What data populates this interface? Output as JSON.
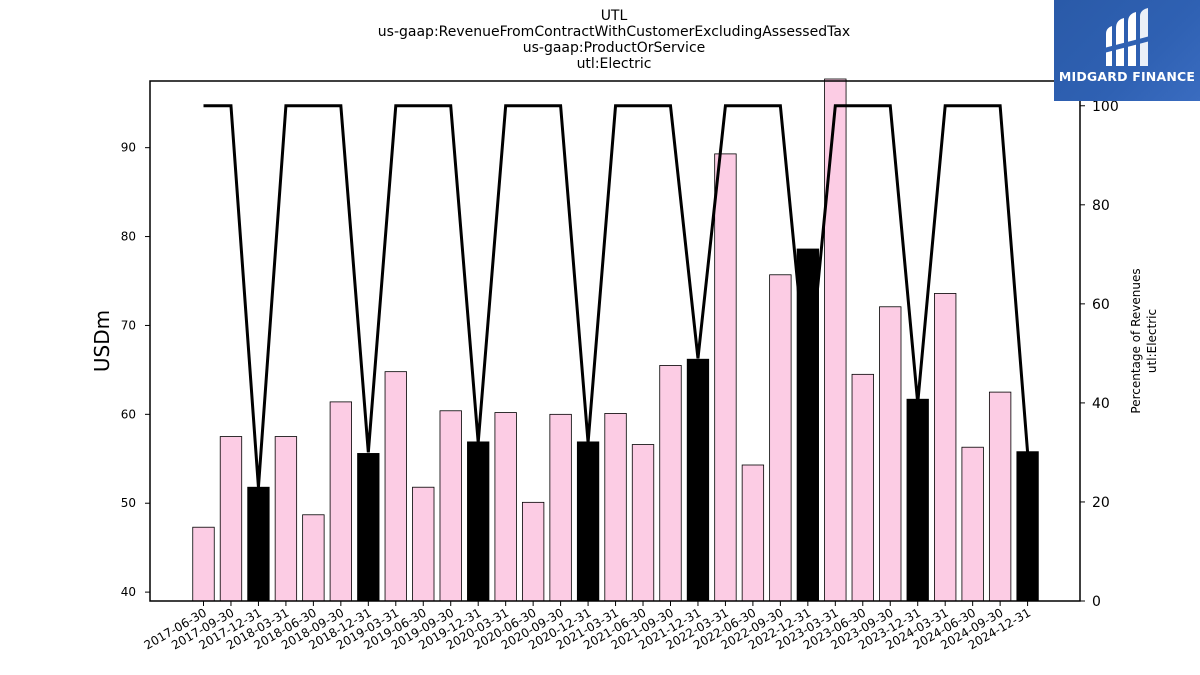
{
  "title_lines": [
    "UTL",
    "us-gaap:RevenueFromContractWithCustomerExcludingAssessedTax",
    "us-gaap:ProductOrService",
    "utl:Electric"
  ],
  "logo": {
    "text": "MIDGARD FINANCE",
    "color": "#2f61b3"
  },
  "colors": {
    "bar_default": "#fccce4",
    "bar_highlight": "#000000",
    "line": "#000000"
  },
  "chart_data": {
    "type": "bar",
    "categories": [
      "2017-06-30",
      "2017-09-30",
      "2017-12-31",
      "2018-03-31",
      "2018-06-30",
      "2018-09-30",
      "2018-12-31",
      "2019-03-31",
      "2019-06-30",
      "2019-09-30",
      "2019-12-31",
      "2020-03-31",
      "2020-06-30",
      "2020-09-30",
      "2020-12-31",
      "2021-03-31",
      "2021-06-30",
      "2021-09-30",
      "2021-12-31",
      "2022-03-31",
      "2022-06-30",
      "2022-09-30",
      "2022-12-31",
      "2023-03-31",
      "2023-06-30",
      "2023-09-30",
      "2023-12-31",
      "2024-03-31",
      "2024-06-30",
      "2024-09-30",
      "2024-12-31"
    ],
    "series": [
      {
        "axis": "left",
        "type": "bar",
        "values": [
          47.3,
          57.5,
          51.8,
          57.5,
          48.7,
          61.4,
          55.6,
          64.8,
          51.8,
          60.4,
          56.9,
          60.2,
          50.1,
          60.0,
          56.9,
          60.1,
          56.6,
          65.5,
          66.2,
          89.3,
          54.3,
          75.7,
          78.6,
          98.0,
          64.5,
          72.1,
          61.7,
          73.6,
          56.3,
          62.5,
          55.8
        ],
        "highlight": [
          false,
          false,
          true,
          false,
          false,
          false,
          true,
          false,
          false,
          false,
          true,
          false,
          false,
          false,
          true,
          false,
          false,
          false,
          true,
          false,
          false,
          false,
          true,
          false,
          false,
          false,
          true,
          false,
          false,
          false,
          true
        ]
      },
      {
        "axis": "right",
        "type": "line",
        "values": [
          100,
          100,
          23,
          100,
          100,
          100,
          30,
          100,
          100,
          100,
          32,
          100,
          100,
          100,
          32,
          100,
          100,
          100,
          49,
          100,
          100,
          100,
          43,
          100,
          100,
          100,
          40,
          100,
          100,
          100,
          30
        ]
      }
    ],
    "ylabel": "USDm",
    "ylim": [
      39,
      97.5
    ],
    "yticks": [
      40,
      50,
      60,
      70,
      80,
      90
    ],
    "y2label_lines": [
      "Percentage of Revenues",
      "utl:Electric"
    ],
    "y2lim": [
      0,
      105
    ],
    "y2ticks": [
      0,
      20,
      40,
      60,
      80,
      100
    ],
    "grid": false
  }
}
